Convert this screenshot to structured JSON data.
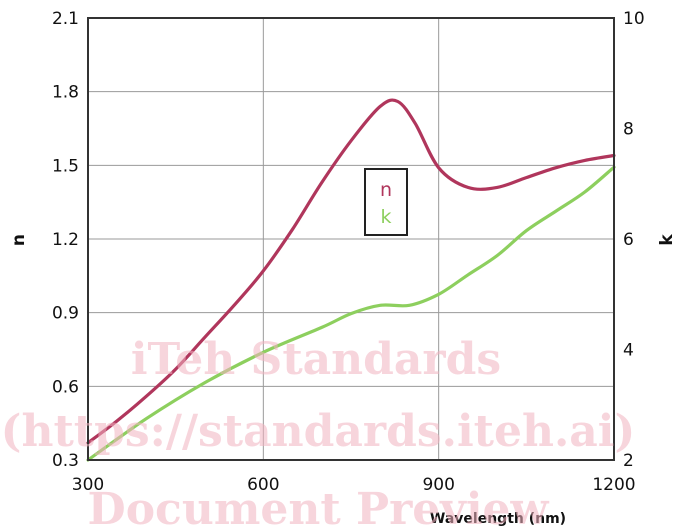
{
  "chart_data": {
    "type": "line",
    "xlabel": "Wavelength (nm)",
    "ylabel_left": "n",
    "ylabel_right": "k",
    "xlim": [
      300,
      1200
    ],
    "ylim_left": [
      0.3,
      2.1
    ],
    "ylim_right": [
      2,
      10
    ],
    "x_ticks": [
      "300",
      "600",
      "900",
      "1200"
    ],
    "y_ticks_left": [
      "0.3",
      "0.6",
      "0.9",
      "1.2",
      "1.5",
      "1.8",
      "2.1"
    ],
    "y_ticks_right": [
      "2",
      "4",
      "6",
      "8",
      "10"
    ],
    "grid": true,
    "legend_position": "center",
    "series": [
      {
        "name": "n",
        "axis": "left",
        "color": "#b0365c",
        "x": [
          300,
          350,
          400,
          450,
          500,
          550,
          600,
          650,
          700,
          750,
          800,
          830,
          860,
          900,
          950,
          1000,
          1050,
          1100,
          1150,
          1200
        ],
        "y": [
          0.37,
          0.46,
          0.56,
          0.67,
          0.8,
          0.93,
          1.07,
          1.24,
          1.43,
          1.6,
          1.74,
          1.76,
          1.67,
          1.49,
          1.41,
          1.41,
          1.45,
          1.49,
          1.52,
          1.54
        ]
      },
      {
        "name": "k",
        "axis": "right",
        "color": "#8dcf5e",
        "x": [
          300,
          400,
          500,
          600,
          700,
          750,
          800,
          850,
          900,
          950,
          1000,
          1050,
          1100,
          1150,
          1200
        ],
        "y": [
          2.0,
          2.75,
          3.4,
          3.95,
          4.4,
          4.65,
          4.8,
          4.8,
          5.0,
          5.35,
          5.7,
          6.15,
          6.5,
          6.85,
          7.3
        ]
      }
    ]
  },
  "watermark": {
    "line1": "iTeh Standards",
    "line2": "(https://standards.iteh.ai)",
    "line3": "Document Preview"
  }
}
